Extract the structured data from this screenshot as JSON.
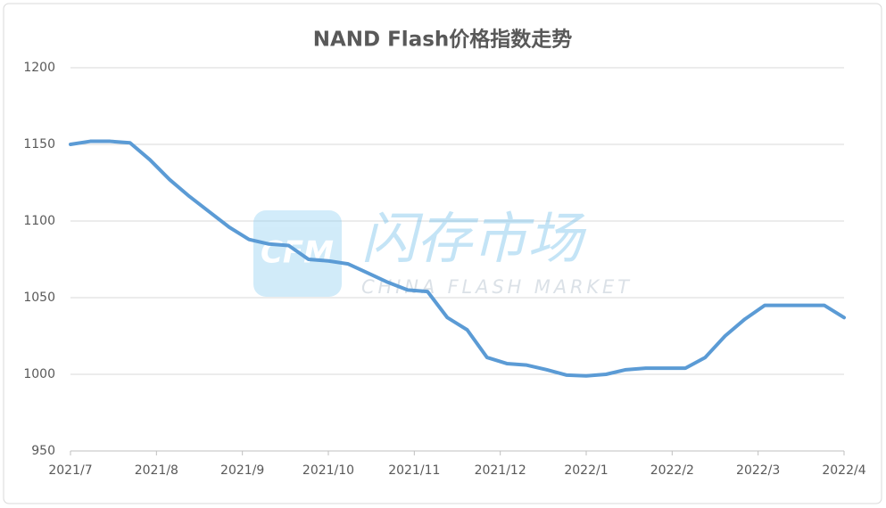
{
  "chart_data": {
    "type": "line",
    "title": "NAND Flash价格指数走势",
    "x": [
      0,
      0.23077,
      0.46154,
      0.69231,
      0.92308,
      1.15385,
      1.38462,
      1.61538,
      1.84615,
      2.07692,
      2.30769,
      2.53846,
      2.76923,
      3.0,
      3.23077,
      3.46154,
      3.69231,
      3.92308,
      4.15385,
      4.38462,
      4.61538,
      4.84615,
      5.07692,
      5.30769,
      5.53846,
      5.76923,
      6.0,
      6.23077,
      6.46154,
      6.69231,
      6.92308,
      7.15385,
      7.38462,
      7.61538,
      7.84615,
      8.07692,
      8.30769,
      8.53846,
      8.76923,
      9.0
    ],
    "series": [
      {
        "name": "NAND Flash价格指数",
        "color": "#5b9bd5",
        "values": [
          1150,
          1152,
          1152,
          1151,
          1140,
          1127,
          1116,
          1106,
          1096,
          1088,
          1085,
          1084,
          1075,
          1074,
          1072,
          1066,
          1060,
          1055,
          1054,
          1037,
          1029,
          1011,
          1007,
          1006,
          1003,
          999.5,
          999,
          1000,
          1003,
          1004,
          1004,
          1004,
          1011,
          1025,
          1036,
          1045,
          1045,
          1045,
          1045,
          1037
        ]
      }
    ],
    "xlim": [
      0,
      9
    ],
    "xticks": [
      {
        "value": 0,
        "label": "2021/7"
      },
      {
        "value": 1,
        "label": "2021/8"
      },
      {
        "value": 2,
        "label": "2021/9"
      },
      {
        "value": 3,
        "label": "2021/10"
      },
      {
        "value": 4,
        "label": "2021/11"
      },
      {
        "value": 5,
        "label": "2021/12"
      },
      {
        "value": 6,
        "label": "2022/1"
      },
      {
        "value": 7,
        "label": "2022/2"
      },
      {
        "value": 8,
        "label": "2022/3"
      },
      {
        "value": 9,
        "label": "2022/4"
      }
    ],
    "ylim": [
      950,
      1200
    ],
    "yticks": [
      950,
      1000,
      1050,
      1100,
      1150,
      1200
    ],
    "grid": true,
    "watermark": {
      "logo": "CFM",
      "text": "闪存市场",
      "subtext": "CHINA FLASH MARKET"
    }
  }
}
